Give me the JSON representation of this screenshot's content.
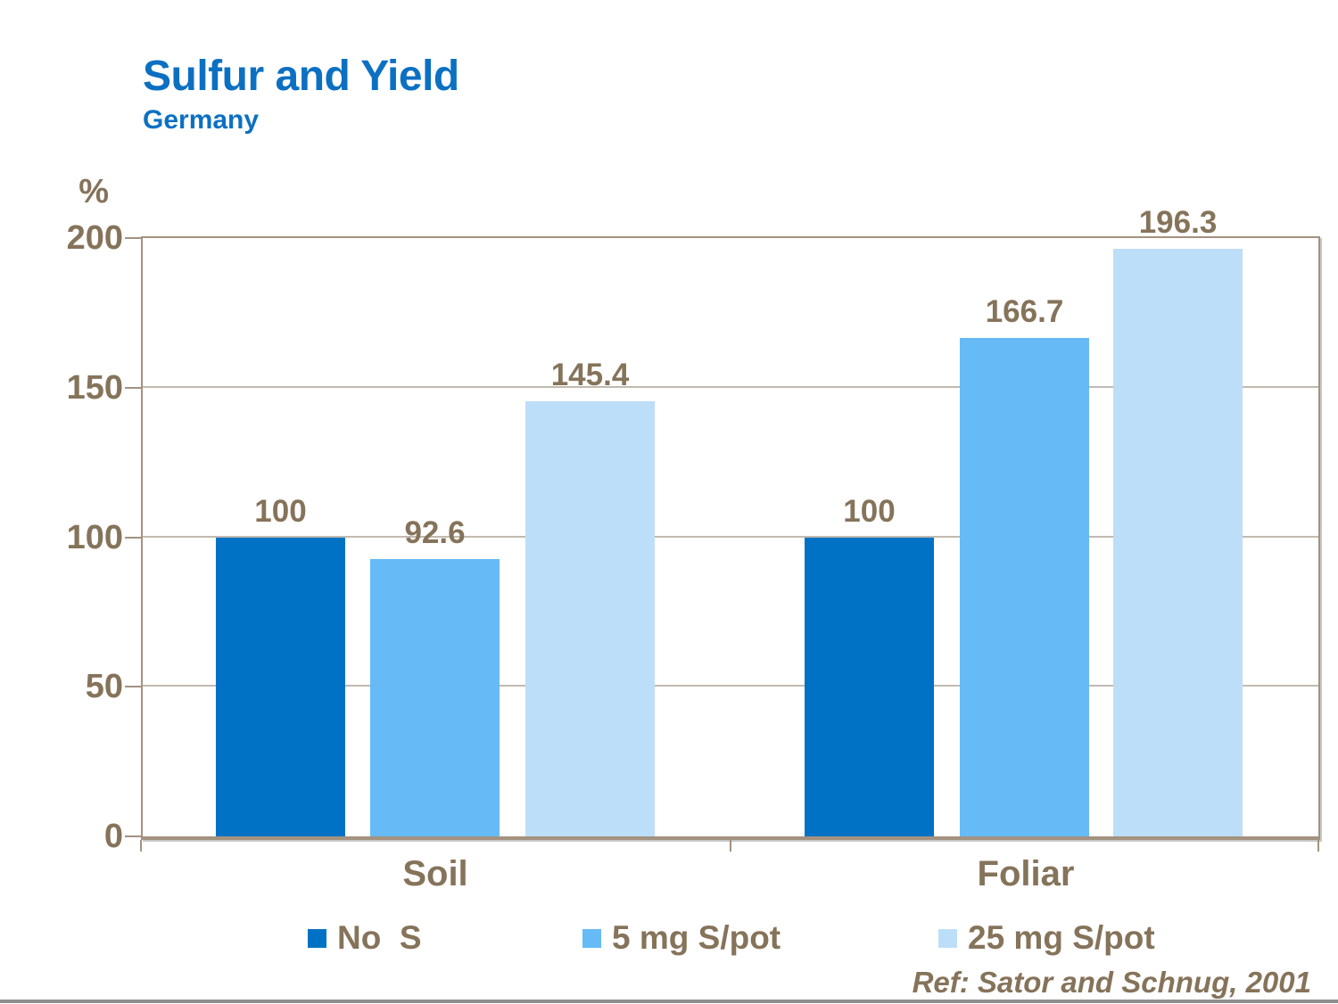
{
  "slide": {
    "title": "Sulfur and Yield",
    "subtitle": "Germany",
    "reference": "Ref: Sator and Schnug, 2001"
  },
  "chart_data": {
    "type": "bar",
    "title": "Sulfur and Yield",
    "subtitle": "Germany",
    "ylabel": "%",
    "ylim": [
      0,
      200
    ],
    "yticks": [
      0,
      50,
      100,
      150,
      200
    ],
    "grid": "horizontal",
    "legend_position": "bottom",
    "categories": [
      "Soil",
      "Foliar"
    ],
    "series": [
      {
        "name": "No  S",
        "color": "#0072C5",
        "values": [
          100,
          100
        ]
      },
      {
        "name": "5 mg S/pot",
        "color": "#66BBF7",
        "values": [
          92.6,
          166.7
        ]
      },
      {
        "name": "25 mg S/pot",
        "color": "#BDDEF8",
        "values": [
          145.4,
          196.3
        ]
      }
    ],
    "value_labels": [
      [
        "100",
        "92.6",
        "145.4"
      ],
      [
        "100",
        "166.7",
        "196.3"
      ]
    ]
  },
  "theme": {
    "title_color": "#0C70C2",
    "text_color": "#85735A",
    "frame_color": "#A3927F",
    "gridline_color": "#C2BAB0",
    "bottom_rule_color": "#8E8E8E"
  }
}
